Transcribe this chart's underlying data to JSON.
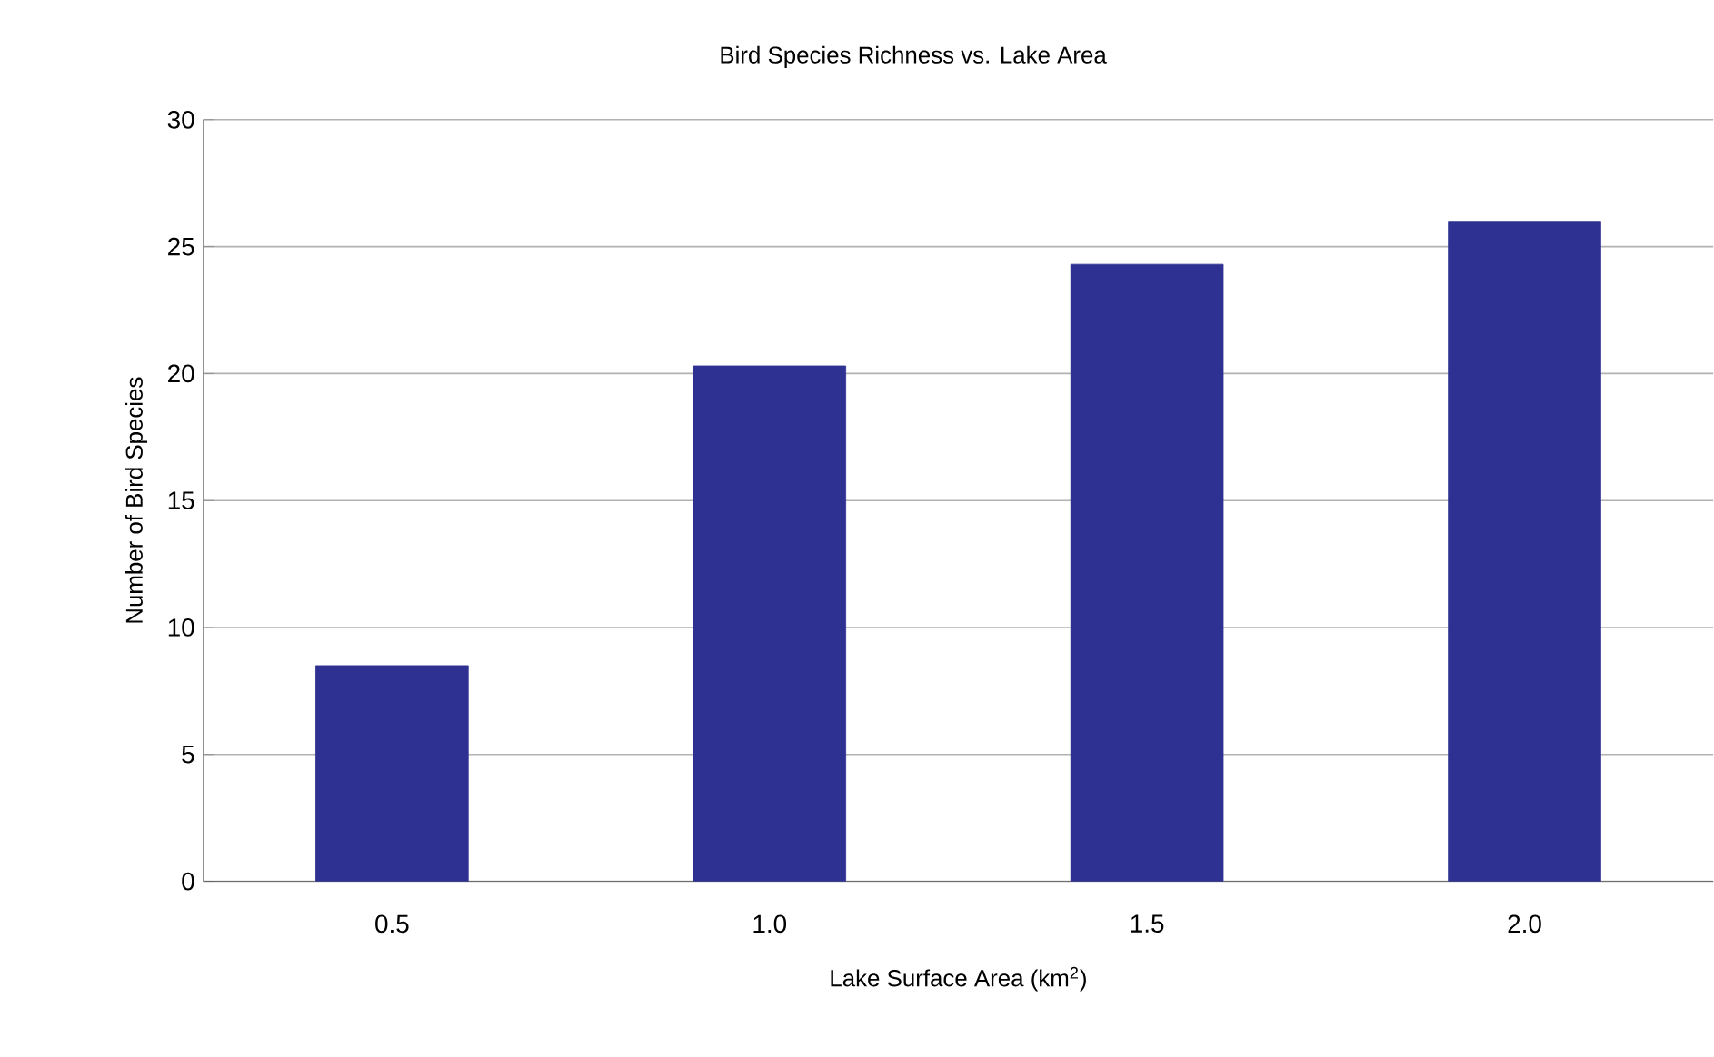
{
  "chart_data": {
    "type": "bar",
    "title": "Bird Species Richness vs. Lake Area",
    "xlabel": "Lake Surface Area (km$^{2}$)",
    "ylabel": "Number of Bird Species",
    "categories": [
      "0.5",
      "1.0",
      "1.5",
      "2.0"
    ],
    "values": [
      8.5,
      20.3,
      24.3,
      26
    ],
    "color": "#2e3192",
    "ylim": [
      0,
      30
    ],
    "yticks": [
      0,
      5,
      10,
      15,
      20,
      25,
      30
    ],
    "grid": "y"
  }
}
